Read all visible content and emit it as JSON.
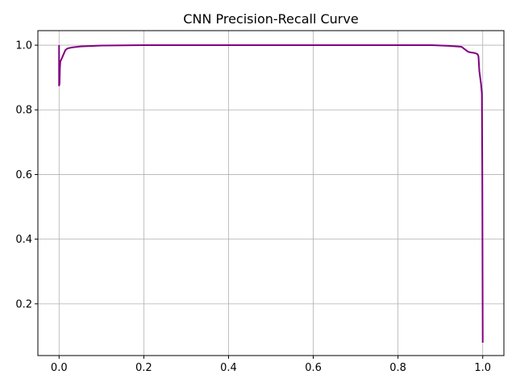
{
  "chart_data": {
    "type": "line",
    "title": "CNN Precision-Recall Curve",
    "xlabel": "",
    "ylabel": "",
    "xlim": [
      -0.05,
      1.05
    ],
    "ylim": [
      0.04,
      1.045
    ],
    "xticks": [
      0.0,
      0.2,
      0.4,
      0.6,
      0.8,
      1.0
    ],
    "xtick_labels": [
      "0.0",
      "0.2",
      "0.4",
      "0.6",
      "0.8",
      "1.0"
    ],
    "yticks": [
      0.2,
      0.4,
      0.6,
      0.8,
      1.0
    ],
    "ytick_labels": [
      "0.2",
      "0.4",
      "0.6",
      "0.8",
      "1.0"
    ],
    "grid": true,
    "legend": "none",
    "series": [
      {
        "color": "#800080",
        "x": [
          0.0,
          0.0,
          0.001,
          0.002,
          0.003,
          0.005,
          0.01,
          0.015,
          0.02,
          0.03,
          0.05,
          0.1,
          0.2,
          0.3,
          0.5,
          0.7,
          0.88,
          0.92,
          0.93,
          0.95,
          0.955,
          0.96,
          0.965,
          0.97,
          0.975,
          0.98,
          0.985,
          0.988,
          0.99,
          0.992,
          0.994,
          0.996,
          0.998,
          0.999,
          1.0
        ],
        "y": [
          1.0,
          0.875,
          0.88,
          0.93,
          0.95,
          0.955,
          0.97,
          0.985,
          0.99,
          0.993,
          0.996,
          0.999,
          1.0,
          1.0,
          1.0,
          1.0,
          1.0,
          0.998,
          0.997,
          0.995,
          0.99,
          0.985,
          0.98,
          0.978,
          0.977,
          0.976,
          0.974,
          0.972,
          0.965,
          0.92,
          0.9,
          0.88,
          0.85,
          0.6,
          0.08
        ]
      }
    ]
  }
}
